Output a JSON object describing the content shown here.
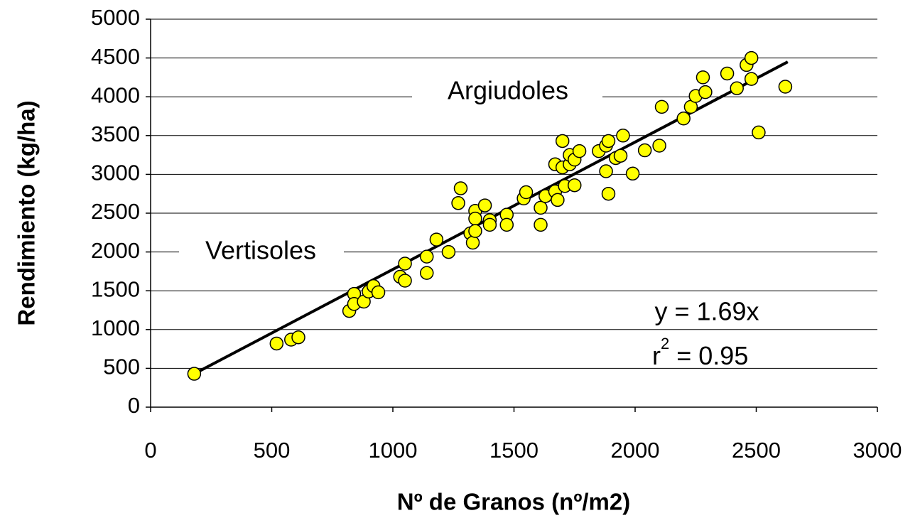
{
  "chart_data": {
    "type": "scatter",
    "xlabel": "Nº de Granos (nº/m2)",
    "ylabel": "Rendimiento (kg/ha)",
    "xlim": [
      0,
      3000
    ],
    "xticks": [
      0,
      500,
      1000,
      1500,
      2000,
      2500,
      3000
    ],
    "ylim": [
      0,
      5000
    ],
    "yticks": [
      0,
      500,
      1000,
      1500,
      2000,
      2500,
      3000,
      3500,
      4000,
      4500,
      5000
    ],
    "grid": true,
    "color": "#ffff00",
    "x": [
      180,
      520,
      580,
      610,
      820,
      840,
      840,
      880,
      900,
      920,
      940,
      1030,
      1050,
      1050,
      1140,
      1140,
      1180,
      1230,
      1270,
      1280,
      1320,
      1330,
      1340,
      1340,
      1340,
      1380,
      1400,
      1400,
      1470,
      1470,
      1540,
      1550,
      1610,
      1610,
      1630,
      1670,
      1670,
      1680,
      1700,
      1710,
      1730,
      1750,
      1700,
      1730,
      1750,
      1770,
      1850,
      1880,
      1890,
      1880,
      1890,
      1920,
      1940,
      1950,
      1990,
      2040,
      2100,
      2110,
      2200,
      2230,
      2250,
      2280,
      2290,
      2380,
      2420,
      2460,
      2480,
      2480,
      2510,
      2620
    ],
    "values": [
      430,
      820,
      870,
      900,
      1240,
      1460,
      1330,
      1360,
      1490,
      1560,
      1480,
      1680,
      1850,
      1630,
      1940,
      1730,
      2160,
      2000,
      2630,
      2820,
      2240,
      2120,
      2530,
      2430,
      2270,
      2600,
      2410,
      2350,
      2480,
      2350,
      2690,
      2770,
      2350,
      2570,
      2720,
      2780,
      3130,
      2670,
      3090,
      2850,
      3130,
      2860,
      3430,
      3250,
      3190,
      3300,
      3300,
      3370,
      3430,
      3040,
      2750,
      3210,
      3240,
      3500,
      3010,
      3310,
      3370,
      3870,
      3720,
      3870,
      4010,
      4250,
      4060,
      4300,
      4110,
      4410,
      4500,
      4230,
      3540,
      4130
    ],
    "trendline": {
      "x": [
        180,
        2630
      ],
      "y": [
        430,
        4450
      ]
    },
    "annotations": [
      "Argiudoles",
      "Vertisoles"
    ],
    "equation": "y = 1.69x",
    "r2": {
      "base": "r",
      "sup": "2",
      "rest": " = 0.95"
    }
  }
}
